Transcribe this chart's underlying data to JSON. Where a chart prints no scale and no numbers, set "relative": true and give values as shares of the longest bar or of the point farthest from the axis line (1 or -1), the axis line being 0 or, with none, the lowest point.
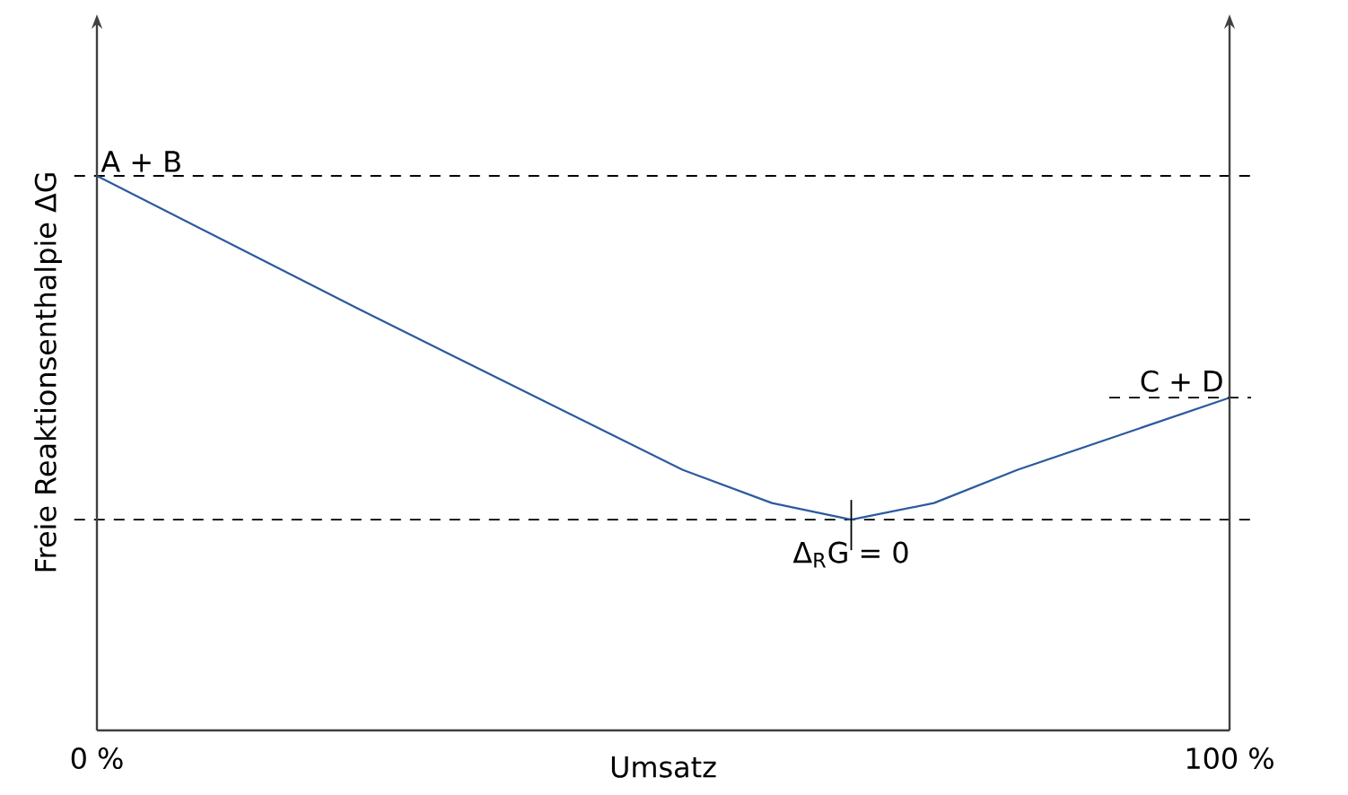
{
  "chart_data": {
    "type": "line",
    "relative": true,
    "xlabel": "Umsatz",
    "ylabel": "Freie Reaktionsenthalpie ΔG",
    "xlim": [
      0,
      100
    ],
    "xticks": [
      {
        "value": 0,
        "label": "0 %"
      },
      {
        "value": 100,
        "label": "100 %"
      }
    ],
    "x": [
      0,
      23.1,
      51.7,
      59.6,
      66.6,
      73.9,
      81.3,
      100
    ],
    "series": [
      {
        "color": "#2b5a9e",
        "values": [
          1,
          0.76,
          0.47,
          0.41,
          0.38,
          0.41,
          0.47,
          0.6
        ]
      }
    ],
    "ref_lines": [
      {
        "axis": "y",
        "value": 1,
        "label": "A + B",
        "line_style": "dashed"
      },
      {
        "axis": "y",
        "value": 0.38,
        "label": null,
        "line_style": "dashed"
      }
    ],
    "annotations": [
      {
        "text": "Δ$_{R}$G = 0",
        "x": 66.6,
        "y": 0.38
      },
      {
        "text": "C + D",
        "x": 100,
        "y": 0.6
      }
    ],
    "grid": false,
    "marker": "none",
    "line_style": "solid"
  }
}
